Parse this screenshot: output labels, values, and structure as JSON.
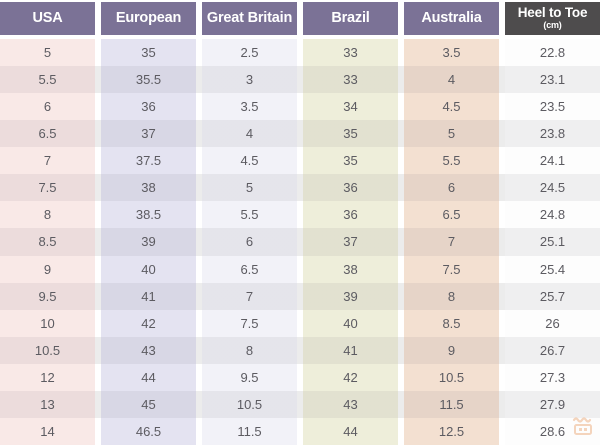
{
  "chart_data": {
    "type": "table",
    "columns": [
      {
        "label": "USA"
      },
      {
        "label": "European"
      },
      {
        "label": "Great Britain"
      },
      {
        "label": "Brazil"
      },
      {
        "label": "Australia"
      },
      {
        "label": "Heel to Toe",
        "sublabel": "(cm)"
      }
    ],
    "rows": [
      [
        "5",
        "35",
        "2.5",
        "33",
        "3.5",
        "22.8"
      ],
      [
        "5.5",
        "35.5",
        "3",
        "33",
        "4",
        "23.1"
      ],
      [
        "6",
        "36",
        "3.5",
        "34",
        "4.5",
        "23.5"
      ],
      [
        "6.5",
        "37",
        "4",
        "35",
        "5",
        "23.8"
      ],
      [
        "7",
        "37.5",
        "4.5",
        "35",
        "5.5",
        "24.1"
      ],
      [
        "7.5",
        "38",
        "5",
        "36",
        "6",
        "24.5"
      ],
      [
        "8",
        "38.5",
        "5.5",
        "36",
        "6.5",
        "24.8"
      ],
      [
        "8.5",
        "39",
        "6",
        "37",
        "7",
        "25.1"
      ],
      [
        "9",
        "40",
        "6.5",
        "38",
        "7.5",
        "25.4"
      ],
      [
        "9.5",
        "41",
        "7",
        "39",
        "8",
        "25.7"
      ],
      [
        "10",
        "42",
        "7.5",
        "40",
        "8.5",
        "26"
      ],
      [
        "10.5",
        "43",
        "8",
        "41",
        "9",
        "26.7"
      ],
      [
        "12",
        "44",
        "9.5",
        "42",
        "10.5",
        "27.3"
      ],
      [
        "13",
        "45",
        "10.5",
        "43",
        "11.5",
        "27.9"
      ],
      [
        "14",
        "46.5",
        "11.5",
        "44",
        "12.5",
        "28.6"
      ]
    ]
  },
  "colors": {
    "header_purple": "#7b7296",
    "header_dark": "#4e4c4d",
    "header_text": "#ffffff",
    "body_text": "#5c5b61",
    "columns": [
      "#f9e9e7",
      "#e4e3f1",
      "#f2f2f8",
      "#eeeeda",
      "#f3e0d1",
      "#fdfdfd"
    ],
    "alt_row_overlay": "#ececec",
    "watermark_color": "#eba36f"
  },
  "watermark": {
    "icon": "shop-icon"
  }
}
